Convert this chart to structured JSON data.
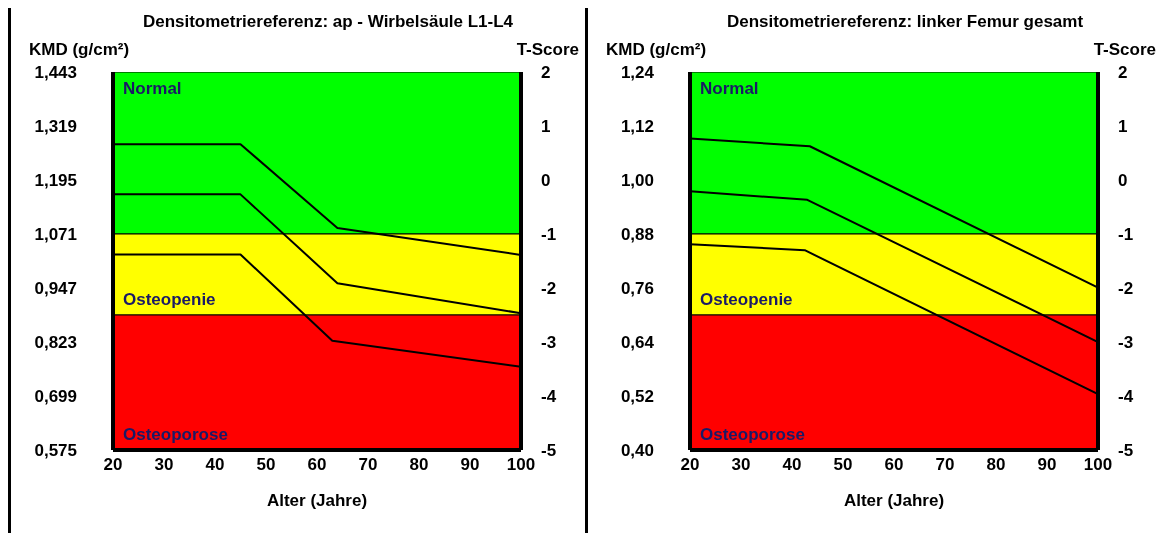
{
  "chart_data": [
    {
      "type": "line",
      "title": "Densitometriereferenz: ap - Wirbelsäule L1-L4",
      "xlabel": "Alter (Jahre)",
      "ylabel": "KMD (g/cm²)",
      "y2label": "T-Score",
      "series": [
        {
          "color": "#000000",
          "x": [
            20,
            45,
            64,
            100
          ],
          "values": [
            1.277,
            1.277,
            1.085,
            1.023
          ]
        },
        {
          "color": "#000000",
          "x": [
            20,
            45,
            64,
            100
          ],
          "values": [
            1.162,
            1.162,
            0.958,
            0.889
          ]
        },
        {
          "color": "#000000",
          "x": [
            20,
            45,
            63,
            100
          ],
          "values": [
            1.024,
            1.024,
            0.826,
            0.766
          ]
        }
      ],
      "xlim": [
        20,
        100
      ],
      "xticks": [
        20,
        30,
        40,
        50,
        60,
        70,
        80,
        90,
        100
      ],
      "ylim": [
        0.575,
        1.443
      ],
      "yticks": [
        {
          "value": 0.575,
          "label": "0,575"
        },
        {
          "value": 0.699,
          "label": "0,699"
        },
        {
          "value": 0.823,
          "label": "0,823"
        },
        {
          "value": 0.947,
          "label": "0,947"
        },
        {
          "value": 1.071,
          "label": "1,071"
        },
        {
          "value": 1.195,
          "label": "1,195"
        },
        {
          "value": 1.319,
          "label": "1,319"
        },
        {
          "value": 1.443,
          "label": "1,443"
        }
      ],
      "y2lim": [
        -5,
        2
      ],
      "y2ticks": [
        -5,
        -4,
        -3,
        -2,
        -1,
        0,
        1,
        2
      ],
      "bands": [
        {
          "axis": "y",
          "from": 1.071,
          "to": 1.443,
          "label": "Normal",
          "color": "#00ff00"
        },
        {
          "axis": "y",
          "from": 0.885,
          "to": 1.071,
          "label": "Osteopenie",
          "color": "#ffff00"
        },
        {
          "axis": "y",
          "from": 0.575,
          "to": 0.885,
          "label": "Osteoporose",
          "color": "#ff0000"
        }
      ],
      "grid": false,
      "legend": false,
      "marker": "none",
      "line_style": "solid"
    },
    {
      "type": "line",
      "title": "Densitometriereferenz: linker Femur gesamt",
      "xlabel": "Alter (Jahre)",
      "ylabel": "KMD (g/cm²)",
      "y2label": "T-Score",
      "series": [
        {
          "color": "#000000",
          "x": [
            20,
            43.5,
            100
          ],
          "values": [
            1.092,
            1.075,
            0.761
          ]
        },
        {
          "color": "#000000",
          "x": [
            20,
            43,
            100
          ],
          "values": [
            0.975,
            0.956,
            0.64
          ]
        },
        {
          "color": "#000000",
          "x": [
            20,
            42.5,
            100
          ],
          "values": [
            0.857,
            0.844,
            0.524
          ]
        }
      ],
      "xlim": [
        20,
        100
      ],
      "xticks": [
        20,
        30,
        40,
        50,
        60,
        70,
        80,
        90,
        100
      ],
      "ylim": [
        0.4,
        1.24
      ],
      "yticks": [
        {
          "value": 0.4,
          "label": "0,40"
        },
        {
          "value": 0.52,
          "label": "0,52"
        },
        {
          "value": 0.64,
          "label": "0,64"
        },
        {
          "value": 0.76,
          "label": "0,76"
        },
        {
          "value": 0.88,
          "label": "0,88"
        },
        {
          "value": 1.0,
          "label": "1,00"
        },
        {
          "value": 1.12,
          "label": "1,12"
        },
        {
          "value": 1.24,
          "label": "1,24"
        }
      ],
      "y2lim": [
        -5,
        2
      ],
      "y2ticks": [
        -5,
        -4,
        -3,
        -2,
        -1,
        0,
        1,
        2
      ],
      "bands": [
        {
          "axis": "y",
          "from": 0.88,
          "to": 1.24,
          "label": "Normal",
          "color": "#00ff00"
        },
        {
          "axis": "y",
          "from": 0.7,
          "to": 0.88,
          "label": "Osteopenie",
          "color": "#ffff00"
        },
        {
          "axis": "y",
          "from": 0.4,
          "to": 0.7,
          "label": "Osteoporose",
          "color": "#ff0000"
        }
      ],
      "grid": false,
      "legend": false,
      "marker": "none",
      "line_style": "solid"
    }
  ]
}
